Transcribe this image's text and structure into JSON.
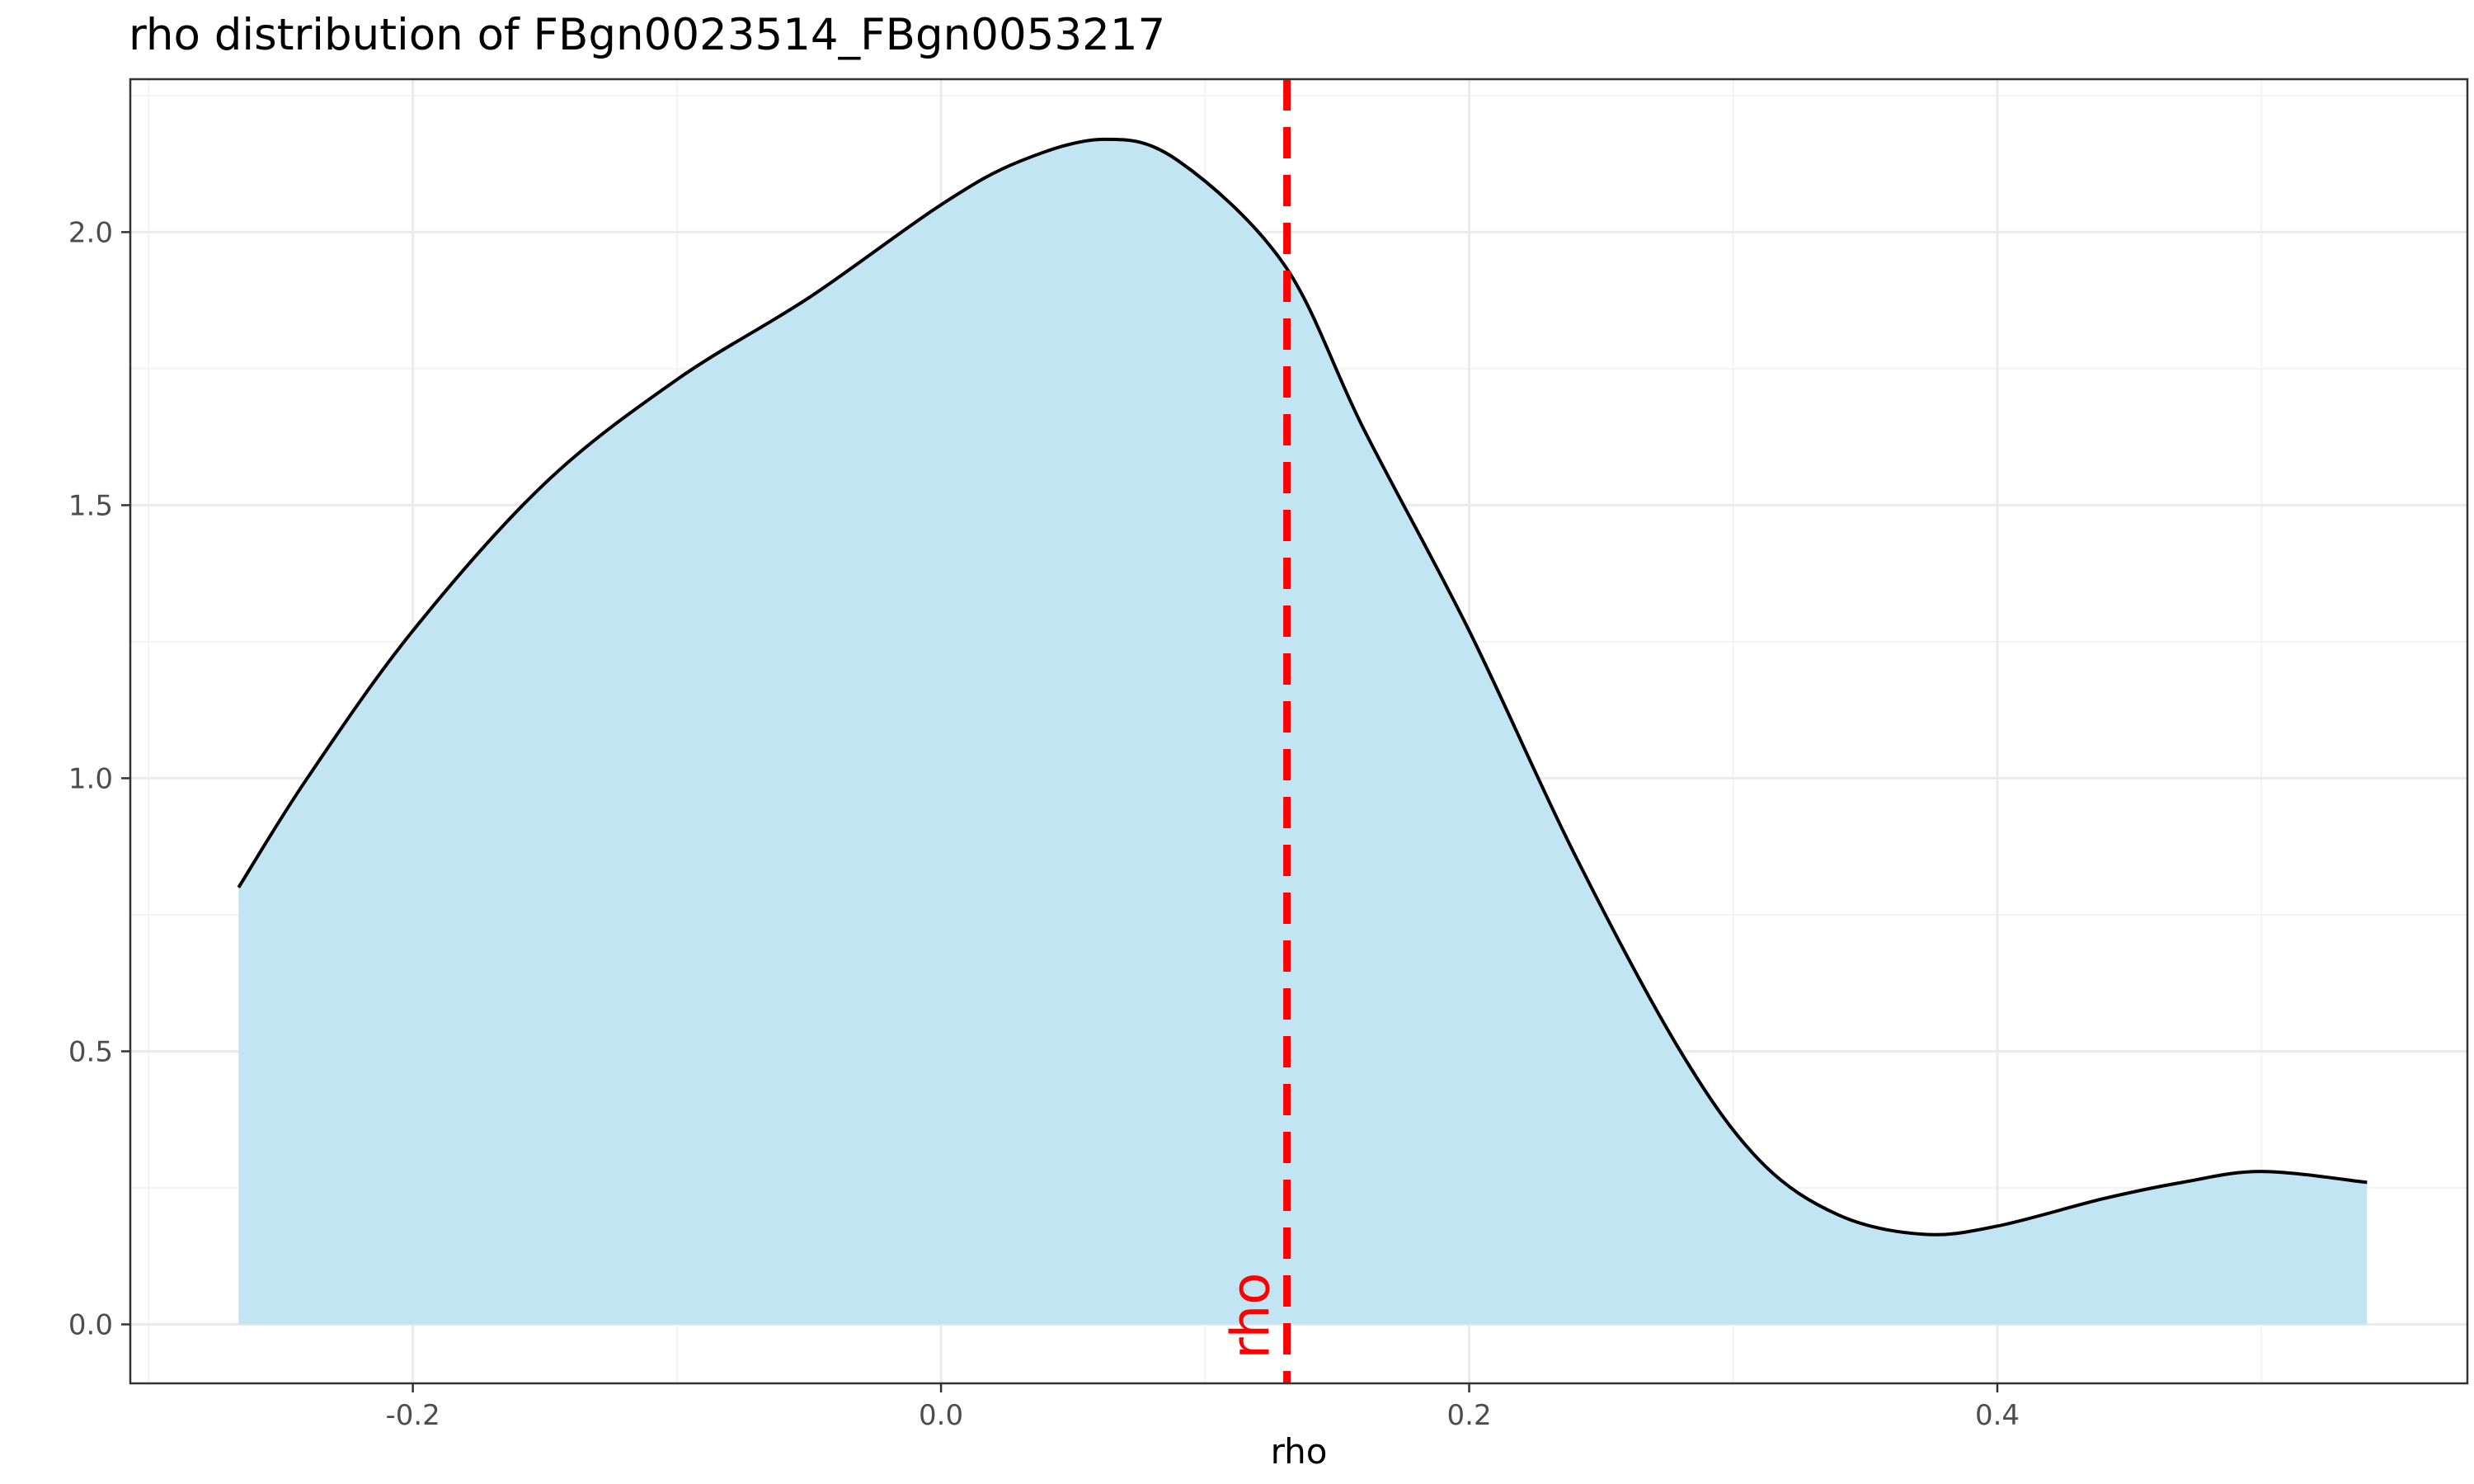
{
  "colors": {
    "fill": "#c2e5f4",
    "line": "#000000",
    "vline": "#ff0000",
    "grid_major": "#ebebeb",
    "grid_minor": "#f3f3f3",
    "panel_border": "#333333"
  },
  "chart_data": {
    "type": "area",
    "title": "rho distribution of FBgn0023514_FBgn0053217",
    "xlabel": "rho",
    "ylabel": "",
    "xlim": [
      -0.307,
      0.578
    ],
    "ylim": [
      -0.108,
      2.28
    ],
    "x_ticks": [
      -0.2,
      0.0,
      0.2,
      0.4
    ],
    "x_tick_labels": [
      "-0.2",
      "0.0",
      "0.2",
      "0.4"
    ],
    "y_ticks": [
      0.0,
      0.5,
      1.0,
      1.5,
      2.0
    ],
    "y_tick_labels": [
      "0.0",
      "0.5",
      "1.0",
      "1.5",
      "2.0"
    ],
    "grid": true,
    "legend": "none",
    "series": [
      {
        "x": [
          -0.266,
          -0.24,
          -0.2,
          -0.15,
          -0.1,
          -0.05,
          0.0,
          0.03,
          0.062,
          0.09,
          0.13,
          0.16,
          0.2,
          0.24,
          0.28,
          0.31,
          0.34,
          0.372,
          0.4,
          0.44,
          0.47,
          0.5,
          0.54
        ],
        "y": [
          0.8,
          1.0,
          1.27,
          1.54,
          1.73,
          1.88,
          2.05,
          2.13,
          2.17,
          2.13,
          1.94,
          1.64,
          1.27,
          0.86,
          0.5,
          0.3,
          0.2,
          0.165,
          0.18,
          0.23,
          0.26,
          0.28,
          0.26
        ]
      }
    ],
    "vline": {
      "x": 0.131,
      "label": "rho",
      "style": "dashed"
    }
  }
}
